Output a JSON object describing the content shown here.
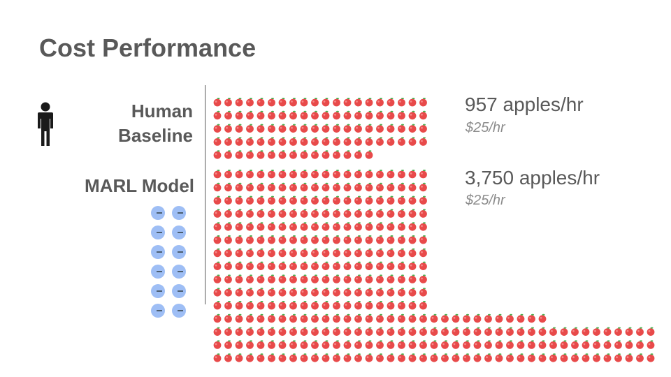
{
  "title": "Cost Performance",
  "rows": [
    {
      "label_line1": "Human",
      "label_line2": "Baseline",
      "icon": "person-icon",
      "rate": "957 apples/hr",
      "cost": "$25/hr"
    },
    {
      "label_line1": "MARL Model",
      "icon": "agent-dots-icon",
      "rate": "3,750 apples/hr",
      "cost": "$25/hr"
    }
  ],
  "colors": {
    "apple": "#e84a4a",
    "apple_highlight": "#f58a8a",
    "apple_leaf": "#4caf50",
    "agent": "#9ebef5",
    "text": "#595959",
    "muted": "#8c8c8c"
  }
}
